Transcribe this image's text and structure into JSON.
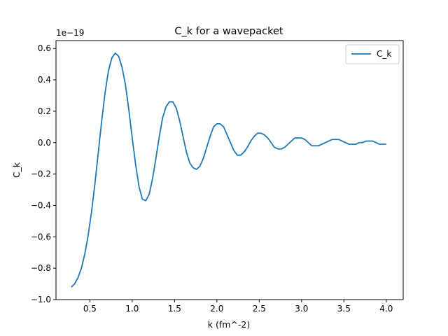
{
  "chart_data": {
    "type": "line",
    "title": "C_k for a wavepacket",
    "xlabel": "k (fm^-2)",
    "ylabel": "C_k",
    "y_offset_label": "1e−19",
    "y_scale_exponent": -19,
    "xlim": [
      0.1,
      4.2
    ],
    "ylim": [
      -1.0,
      0.65
    ],
    "xticks": [
      0.5,
      1.0,
      1.5,
      2.0,
      2.5,
      3.0,
      3.5,
      4.0
    ],
    "xtick_labels": [
      "0.5",
      "1.0",
      "1.5",
      "2.0",
      "2.5",
      "3.0",
      "3.5",
      "4.0"
    ],
    "yticks": [
      -1.0,
      -0.8,
      -0.6,
      -0.4,
      -0.2,
      0.0,
      0.2,
      0.4,
      0.6
    ],
    "ytick_labels": [
      "−1.0",
      "−0.8",
      "−0.6",
      "−0.4",
      "−0.2",
      "0.0",
      "0.2",
      "0.4",
      "0.6"
    ],
    "grid": false,
    "legend_position": "top-right",
    "series": [
      {
        "name": "C_k",
        "color": "#1f77b4",
        "x": [
          0.28,
          0.32,
          0.36,
          0.4,
          0.44,
          0.48,
          0.52,
          0.56,
          0.6,
          0.64,
          0.68,
          0.72,
          0.76,
          0.8,
          0.84,
          0.88,
          0.92,
          0.96,
          1.0,
          1.04,
          1.08,
          1.12,
          1.16,
          1.2,
          1.24,
          1.28,
          1.32,
          1.36,
          1.4,
          1.44,
          1.48,
          1.52,
          1.56,
          1.6,
          1.64,
          1.68,
          1.72,
          1.76,
          1.8,
          1.84,
          1.88,
          1.92,
          1.96,
          2.0,
          2.04,
          2.08,
          2.12,
          2.16,
          2.2,
          2.24,
          2.28,
          2.32,
          2.36,
          2.4,
          2.44,
          2.48,
          2.52,
          2.56,
          2.6,
          2.64,
          2.68,
          2.72,
          2.76,
          2.8,
          2.84,
          2.88,
          2.92,
          2.96,
          3.0,
          3.04,
          3.08,
          3.12,
          3.16,
          3.2,
          3.24,
          3.28,
          3.32,
          3.36,
          3.4,
          3.44,
          3.48,
          3.52,
          3.56,
          3.6,
          3.64,
          3.68,
          3.72,
          3.76,
          3.8,
          3.84,
          3.88,
          3.92,
          3.96,
          4.0
        ],
        "y": [
          -0.92,
          -0.9,
          -0.86,
          -0.8,
          -0.71,
          -0.59,
          -0.44,
          -0.26,
          -0.06,
          0.14,
          0.32,
          0.46,
          0.54,
          0.57,
          0.55,
          0.48,
          0.37,
          0.21,
          0.03,
          -0.14,
          -0.28,
          -0.36,
          -0.37,
          -0.33,
          -0.23,
          -0.1,
          0.04,
          0.16,
          0.23,
          0.26,
          0.26,
          0.22,
          0.14,
          0.04,
          -0.06,
          -0.13,
          -0.16,
          -0.17,
          -0.15,
          -0.1,
          -0.03,
          0.04,
          0.1,
          0.12,
          0.12,
          0.1,
          0.05,
          0.0,
          -0.05,
          -0.08,
          -0.08,
          -0.06,
          -0.03,
          0.01,
          0.04,
          0.06,
          0.06,
          0.05,
          0.03,
          0.0,
          -0.03,
          -0.04,
          -0.04,
          -0.03,
          -0.01,
          0.01,
          0.03,
          0.03,
          0.03,
          0.02,
          0.0,
          -0.02,
          -0.02,
          -0.02,
          -0.01,
          0.0,
          0.01,
          0.02,
          0.02,
          0.02,
          0.01,
          0.0,
          -0.01,
          -0.01,
          -0.01,
          0.0,
          0.0,
          0.01,
          0.01,
          0.01,
          0.0,
          -0.01,
          -0.01,
          -0.01
        ]
      }
    ]
  }
}
